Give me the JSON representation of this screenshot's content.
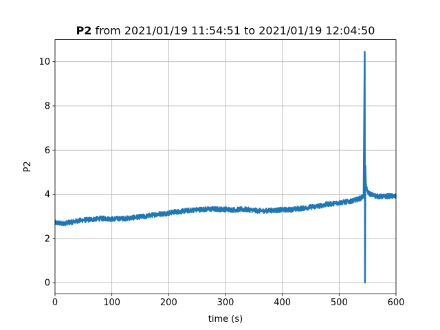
{
  "chart_data": {
    "type": "line",
    "title_bold": "P2",
    "title_rest": " from 2021/01/19 11:54:51 to 2021/01/19 12:04:50",
    "xlabel": "time (s)",
    "ylabel": "P2",
    "xlim": [
      0,
      600
    ],
    "ylim": [
      -0.5,
      11.0
    ],
    "xticks": [
      0,
      100,
      200,
      300,
      400,
      500,
      600
    ],
    "yticks": [
      0,
      2,
      4,
      6,
      8,
      10
    ],
    "grid": true,
    "legend": "none",
    "color": "#1f77b4",
    "series": [
      {
        "x": [
          0,
          10,
          20,
          30,
          40,
          50,
          60,
          70,
          80,
          90,
          100,
          110,
          120,
          130,
          140,
          150,
          160,
          170,
          180,
          190,
          200,
          210,
          220,
          230,
          240,
          250,
          260,
          270,
          280,
          290,
          300,
          310,
          320,
          330,
          340,
          350,
          360,
          370,
          380,
          390,
          400,
          410,
          420,
          430,
          440,
          450,
          460,
          470,
          480,
          490,
          500,
          510,
          520,
          530,
          540,
          543,
          545,
          545.5,
          546,
          547,
          550,
          555,
          560,
          570,
          580,
          590,
          600
        ],
        "y": [
          2.72,
          2.68,
          2.7,
          2.75,
          2.8,
          2.83,
          2.85,
          2.88,
          2.9,
          2.9,
          2.88,
          2.9,
          2.9,
          2.92,
          2.95,
          2.98,
          3.0,
          3.05,
          3.1,
          3.12,
          3.15,
          3.2,
          3.22,
          3.25,
          3.28,
          3.3,
          3.32,
          3.33,
          3.33,
          3.32,
          3.32,
          3.3,
          3.3,
          3.32,
          3.3,
          3.27,
          3.25,
          3.25,
          3.27,
          3.28,
          3.3,
          3.3,
          3.32,
          3.35,
          3.38,
          3.42,
          3.45,
          3.5,
          3.55,
          3.58,
          3.62,
          3.65,
          3.68,
          3.75,
          3.85,
          3.95,
          10.45,
          0.0,
          5.3,
          4.4,
          4.1,
          4.0,
          3.95,
          3.9,
          3.9,
          3.92,
          3.9
        ],
        "noise": 0.1
      }
    ]
  }
}
